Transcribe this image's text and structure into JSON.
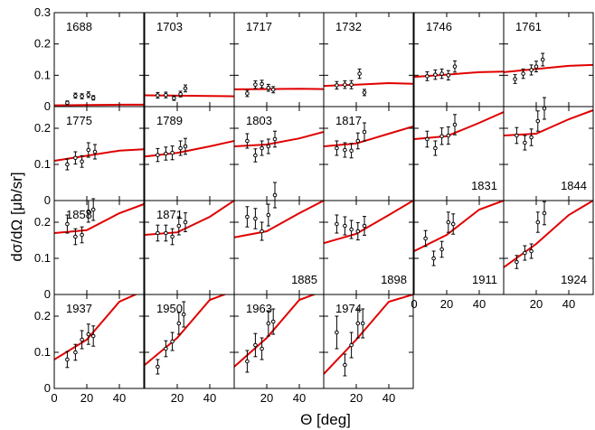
{
  "chart_data": {
    "type": "scatter",
    "ylabel": "dσ/dΩ [μb/sr]",
    "xlabel": "Θ [deg]",
    "xlim": [
      0,
      55
    ],
    "x_ticks": [
      0,
      20,
      40
    ],
    "ylim_row1": [
      0,
      0.3
    ],
    "y_ticks_row1": [
      0,
      0.1,
      0.2,
      0.3
    ],
    "ylim_rows2to4": [
      0,
      0.26
    ],
    "y_ticks_rows2to4": [
      0,
      0.1,
      0.2
    ],
    "curve_color": "#e00000",
    "panels": [
      {
        "label": "1688",
        "row": 0,
        "col": 0,
        "points": [
          [
            8,
            0.012,
            0.006
          ],
          [
            13,
            0.035,
            0.008
          ],
          [
            17,
            0.033,
            0.008
          ],
          [
            21,
            0.038,
            0.009
          ],
          [
            24,
            0.028,
            0.007
          ]
        ],
        "curve": [
          [
            0,
            0.004
          ],
          [
            20,
            0.005
          ],
          [
            40,
            0.006
          ],
          [
            55,
            0.006
          ]
        ]
      },
      {
        "label": "1703",
        "row": 0,
        "col": 1,
        "points": [
          [
            8,
            0.036,
            0.009
          ],
          [
            13,
            0.037,
            0.009
          ],
          [
            18,
            0.027,
            0.007
          ],
          [
            22,
            0.04,
            0.009
          ],
          [
            25,
            0.058,
            0.011
          ]
        ],
        "curve": [
          [
            0,
            0.036
          ],
          [
            20,
            0.035
          ],
          [
            40,
            0.034
          ],
          [
            55,
            0.033
          ]
        ]
      },
      {
        "label": "1717",
        "row": 0,
        "col": 2,
        "points": [
          [
            8,
            0.042,
            0.01
          ],
          [
            13,
            0.07,
            0.012
          ],
          [
            17,
            0.072,
            0.012
          ],
          [
            21,
            0.06,
            0.011
          ],
          [
            24,
            0.054,
            0.01
          ]
        ],
        "curve": [
          [
            0,
            0.055
          ],
          [
            20,
            0.056
          ],
          [
            40,
            0.057
          ],
          [
            55,
            0.056
          ]
        ]
      },
      {
        "label": "1732",
        "row": 0,
        "col": 3,
        "points": [
          [
            8,
            0.068,
            0.012
          ],
          [
            13,
            0.07,
            0.012
          ],
          [
            17,
            0.07,
            0.013
          ],
          [
            22,
            0.105,
            0.015
          ],
          [
            25,
            0.045,
            0.01
          ]
        ],
        "curve": [
          [
            0,
            0.066
          ],
          [
            20,
            0.07
          ],
          [
            40,
            0.075
          ],
          [
            55,
            0.073
          ]
        ]
      },
      {
        "label": "1746",
        "row": 0,
        "col": 4,
        "points": [
          [
            8,
            0.097,
            0.014
          ],
          [
            13,
            0.102,
            0.015
          ],
          [
            17,
            0.105,
            0.015
          ],
          [
            21,
            0.1,
            0.015
          ],
          [
            25,
            0.128,
            0.018
          ]
        ],
        "curve": [
          [
            0,
            0.095
          ],
          [
            20,
            0.102
          ],
          [
            40,
            0.11
          ],
          [
            55,
            0.112
          ]
        ]
      },
      {
        "label": "1761",
        "row": 0,
        "col": 5,
        "points": [
          [
            7,
            0.088,
            0.014
          ],
          [
            12,
            0.105,
            0.015
          ],
          [
            17,
            0.117,
            0.016
          ],
          [
            20,
            0.128,
            0.017
          ],
          [
            24,
            0.15,
            0.02
          ]
        ],
        "curve": [
          [
            0,
            0.11
          ],
          [
            20,
            0.12
          ],
          [
            40,
            0.13
          ],
          [
            55,
            0.133
          ]
        ]
      },
      {
        "label": "1775",
        "row": 1,
        "col": 0,
        "points": [
          [
            8,
            0.1,
            0.015
          ],
          [
            13,
            0.118,
            0.017
          ],
          [
            17,
            0.108,
            0.016
          ],
          [
            21,
            0.14,
            0.02
          ],
          [
            25,
            0.135,
            0.02
          ]
        ],
        "curve": [
          [
            0,
            0.11
          ],
          [
            20,
            0.124
          ],
          [
            40,
            0.138
          ],
          [
            55,
            0.142
          ]
        ]
      },
      {
        "label": "1789",
        "row": 1,
        "col": 1,
        "points": [
          [
            8,
            0.126,
            0.018
          ],
          [
            13,
            0.13,
            0.018
          ],
          [
            17,
            0.132,
            0.019
          ],
          [
            22,
            0.145,
            0.02
          ],
          [
            25,
            0.15,
            0.022
          ]
        ],
        "curve": [
          [
            0,
            0.122
          ],
          [
            20,
            0.132
          ],
          [
            40,
            0.15
          ],
          [
            55,
            0.165
          ]
        ]
      },
      {
        "label": "1803",
        "row": 1,
        "col": 2,
        "points": [
          [
            8,
            0.165,
            0.02
          ],
          [
            13,
            0.125,
            0.018
          ],
          [
            17,
            0.145,
            0.02
          ],
          [
            21,
            0.15,
            0.02
          ],
          [
            25,
            0.17,
            0.022
          ]
        ],
        "curve": [
          [
            0,
            0.15
          ],
          [
            20,
            0.155
          ],
          [
            40,
            0.172
          ],
          [
            55,
            0.19
          ]
        ]
      },
      {
        "label": "1817",
        "row": 1,
        "col": 3,
        "points": [
          [
            8,
            0.145,
            0.02
          ],
          [
            13,
            0.14,
            0.02
          ],
          [
            17,
            0.138,
            0.02
          ],
          [
            21,
            0.165,
            0.022
          ],
          [
            25,
            0.19,
            0.025
          ]
        ],
        "curve": [
          [
            0,
            0.15
          ],
          [
            20,
            0.158
          ],
          [
            40,
            0.185
          ],
          [
            55,
            0.205
          ]
        ]
      },
      {
        "label": "1831",
        "row": 1,
        "col": 4,
        "points": [
          [
            8,
            0.17,
            0.022
          ],
          [
            13,
            0.145,
            0.02
          ],
          [
            17,
            0.178,
            0.023
          ],
          [
            21,
            0.18,
            0.024
          ],
          [
            25,
            0.21,
            0.028
          ]
        ],
        "curve": [
          [
            0,
            0.17
          ],
          [
            20,
            0.178
          ],
          [
            40,
            0.215
          ],
          [
            55,
            0.245
          ]
        ]
      },
      {
        "label": "1844",
        "row": 1,
        "col": 5,
        "points": [
          [
            8,
            0.18,
            0.022
          ],
          [
            13,
            0.16,
            0.02
          ],
          [
            17,
            0.175,
            0.023
          ],
          [
            21,
            0.22,
            0.028
          ],
          [
            25,
            0.255,
            0.03
          ]
        ],
        "curve": [
          [
            0,
            0.18
          ],
          [
            20,
            0.185
          ],
          [
            40,
            0.225
          ],
          [
            55,
            0.25
          ]
        ]
      },
      {
        "label": "1858",
        "row": 2,
        "col": 0,
        "points": [
          [
            8,
            0.195,
            0.025
          ],
          [
            13,
            0.16,
            0.022
          ],
          [
            17,
            0.165,
            0.022
          ],
          [
            21,
            0.23,
            0.03
          ],
          [
            24,
            0.235,
            0.03
          ]
        ],
        "curve": [
          [
            0,
            0.17
          ],
          [
            20,
            0.178
          ],
          [
            40,
            0.225
          ],
          [
            55,
            0.25
          ]
        ]
      },
      {
        "label": "1871",
        "row": 2,
        "col": 1,
        "points": [
          [
            8,
            0.17,
            0.022
          ],
          [
            13,
            0.17,
            0.022
          ],
          [
            17,
            0.16,
            0.022
          ],
          [
            21,
            0.19,
            0.025
          ],
          [
            25,
            0.2,
            0.026
          ]
        ],
        "curve": [
          [
            0,
            0.165
          ],
          [
            20,
            0.172
          ],
          [
            40,
            0.215
          ],
          [
            55,
            0.26
          ]
        ]
      },
      {
        "label": "1885",
        "row": 2,
        "col": 2,
        "points": [
          [
            8,
            0.215,
            0.028
          ],
          [
            13,
            0.21,
            0.028
          ],
          [
            17,
            0.175,
            0.025
          ],
          [
            21,
            0.22,
            0.03
          ],
          [
            25,
            0.275,
            0.035
          ]
        ],
        "curve": [
          [
            0,
            0.158
          ],
          [
            20,
            0.175
          ],
          [
            40,
            0.225
          ],
          [
            55,
            0.26
          ]
        ]
      },
      {
        "label": "1898",
        "row": 2,
        "col": 3,
        "points": [
          [
            8,
            0.195,
            0.025
          ],
          [
            13,
            0.19,
            0.025
          ],
          [
            17,
            0.18,
            0.025
          ],
          [
            21,
            0.175,
            0.024
          ],
          [
            25,
            0.19,
            0.026
          ]
        ],
        "curve": [
          [
            0,
            0.142
          ],
          [
            20,
            0.168
          ],
          [
            40,
            0.22
          ],
          [
            55,
            0.26
          ]
        ]
      },
      {
        "label": "1911",
        "row": 2,
        "col": 4,
        "points": [
          [
            7,
            0.155,
            0.022
          ],
          [
            12,
            0.1,
            0.02
          ],
          [
            17,
            0.125,
            0.022
          ],
          [
            21,
            0.2,
            0.028
          ],
          [
            24,
            0.195,
            0.028
          ]
        ],
        "curve": [
          [
            0,
            0.12
          ],
          [
            20,
            0.165
          ],
          [
            40,
            0.235
          ],
          [
            55,
            0.26
          ]
        ]
      },
      {
        "label": "1924",
        "row": 2,
        "col": 5,
        "points": [
          [
            8,
            0.09,
            0.018
          ],
          [
            13,
            0.115,
            0.02
          ],
          [
            17,
            0.12,
            0.02
          ],
          [
            21,
            0.2,
            0.028
          ],
          [
            25,
            0.225,
            0.032
          ]
        ],
        "curve": [
          [
            0,
            0.075
          ],
          [
            20,
            0.14
          ],
          [
            40,
            0.22
          ],
          [
            55,
            0.26
          ]
        ]
      },
      {
        "label": "1937",
        "row": 3,
        "col": 0,
        "points": [
          [
            8,
            0.08,
            0.022
          ],
          [
            13,
            0.1,
            0.022
          ],
          [
            17,
            0.135,
            0.025
          ],
          [
            21,
            0.15,
            0.028
          ],
          [
            24,
            0.145,
            0.028
          ]
        ],
        "curve": [
          [
            0,
            0.08
          ],
          [
            20,
            0.135
          ],
          [
            40,
            0.24
          ],
          [
            55,
            0.27
          ]
        ]
      },
      {
        "label": "1950",
        "row": 3,
        "col": 1,
        "points": [
          [
            8,
            0.06,
            0.02
          ],
          [
            13,
            0.11,
            0.022
          ],
          [
            17,
            0.13,
            0.025
          ],
          [
            21,
            0.18,
            0.03
          ],
          [
            24,
            0.205,
            0.035
          ]
        ],
        "curve": [
          [
            0,
            0.065
          ],
          [
            20,
            0.14
          ],
          [
            40,
            0.245
          ],
          [
            55,
            0.27
          ]
        ]
      },
      {
        "label": "1963",
        "row": 3,
        "col": 2,
        "points": [
          [
            8,
            0.075,
            0.03
          ],
          [
            13,
            0.12,
            0.032
          ],
          [
            17,
            0.11,
            0.03
          ],
          [
            21,
            0.18,
            0.035
          ],
          [
            24,
            0.185,
            0.035
          ]
        ],
        "curve": [
          [
            0,
            0.06
          ],
          [
            20,
            0.14
          ],
          [
            40,
            0.245
          ],
          [
            55,
            0.27
          ]
        ]
      },
      {
        "label": "1974",
        "row": 3,
        "col": 3,
        "points": [
          [
            8,
            0.155,
            0.045
          ],
          [
            13,
            0.065,
            0.03
          ],
          [
            17,
            0.12,
            0.035
          ],
          [
            21,
            0.18,
            0.04
          ],
          [
            24,
            0.18,
            0.04
          ]
        ],
        "curve": [
          [
            0,
            0.04
          ],
          [
            20,
            0.135
          ],
          [
            40,
            0.24
          ],
          [
            55,
            0.26
          ]
        ]
      }
    ]
  }
}
